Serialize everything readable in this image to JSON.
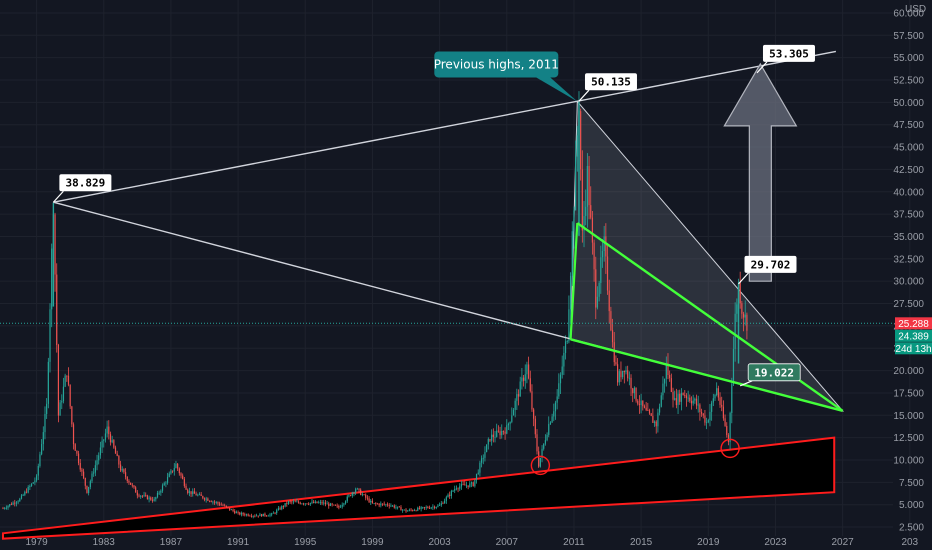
{
  "chart_data": {
    "type": "line",
    "currency_label": "USD",
    "x_range": [
      1977,
      2030
    ],
    "y_range": [
      1.5,
      61
    ],
    "x_ticks": [
      "1979",
      "1983",
      "1987",
      "1991",
      "1995",
      "1999",
      "2003",
      "2007",
      "2011",
      "2015",
      "2019",
      "2023",
      "2027",
      "203"
    ],
    "y_ticks": [
      "60.000",
      "57.500",
      "55.000",
      "52.500",
      "50.000",
      "47.500",
      "45.000",
      "42.500",
      "40.000",
      "37.500",
      "35.000",
      "32.500",
      "30.000",
      "27.500",
      "25.000",
      "22.500",
      "20.000",
      "17.500",
      "15.000",
      "12.500",
      "10.000",
      "7.500",
      "5.000",
      "2.500"
    ],
    "price_series": [
      [
        1977.0,
        4.6
      ],
      [
        1978.0,
        5.6
      ],
      [
        1979.0,
        8.0
      ],
      [
        1979.6,
        16
      ],
      [
        1980.0,
        38.8
      ],
      [
        1980.3,
        15
      ],
      [
        1980.8,
        20
      ],
      [
        1981.2,
        12
      ],
      [
        1982.0,
        6.5
      ],
      [
        1982.6,
        10
      ],
      [
        1983.2,
        13.5
      ],
      [
        1984.0,
        9
      ],
      [
        1985.0,
        6.2
      ],
      [
        1986.0,
        5.5
      ],
      [
        1987.3,
        9.5
      ],
      [
        1988.0,
        6.5
      ],
      [
        1990.0,
        5.0
      ],
      [
        1991.0,
        4.0
      ],
      [
        1992.0,
        3.8
      ],
      [
        1993.0,
        3.9
      ],
      [
        1994.0,
        5.3
      ],
      [
        1995.0,
        5.2
      ],
      [
        1996.0,
        5.2
      ],
      [
        1997.0,
        4.7
      ],
      [
        1998.0,
        6.8
      ],
      [
        1999.0,
        5.1
      ],
      [
        2000.0,
        5.0
      ],
      [
        2001.0,
        4.3
      ],
      [
        2002.0,
        4.6
      ],
      [
        2003.0,
        4.9
      ],
      [
        2004.0,
        7.0
      ],
      [
        2005.0,
        7.3
      ],
      [
        2006.0,
        12.5
      ],
      [
        2007.0,
        13.5
      ],
      [
        2008.2,
        20.5
      ],
      [
        2008.9,
        9.5
      ],
      [
        2009.5,
        14
      ],
      [
        2010.0,
        17
      ],
      [
        2010.6,
        24
      ],
      [
        2011.3,
        50.1
      ],
      [
        2011.5,
        35
      ],
      [
        2011.8,
        42
      ],
      [
        2012.3,
        28
      ],
      [
        2012.8,
        34
      ],
      [
        2013.3,
        23
      ],
      [
        2013.6,
        19
      ],
      [
        2014.0,
        20.5
      ],
      [
        2014.7,
        17
      ],
      [
        2015.2,
        15.5
      ],
      [
        2015.9,
        14
      ],
      [
        2016.5,
        20.5
      ],
      [
        2017.0,
        16.5
      ],
      [
        2017.5,
        17.5
      ],
      [
        2018.2,
        16.5
      ],
      [
        2018.9,
        14.2
      ],
      [
        2019.5,
        18
      ],
      [
        2020.2,
        12
      ],
      [
        2020.6,
        26
      ],
      [
        2020.8,
        29.7
      ],
      [
        2021.0,
        27
      ],
      [
        2021.3,
        25.3
      ]
    ],
    "up_candle_color": "#26a69a",
    "down_candle_color": "#ef5350",
    "current_price": 25.288,
    "axis_badges": [
      {
        "label": "25.288",
        "value": 25.288,
        "color": "#f23645"
      },
      {
        "label": "24.389",
        "value": 24.389,
        "color": "#089981"
      },
      {
        "label": "24d 13h",
        "value": 22.9,
        "color": "#089981"
      }
    ],
    "annotations": {
      "notes": [
        {
          "label": "38.829",
          "x": 1980.0,
          "y": 38.83
        },
        {
          "label": "50.135",
          "x": 2011.3,
          "y": 50.13
        },
        {
          "label": "53.305",
          "x": 2021.9,
          "y": 53.3
        },
        {
          "label": "29.702",
          "x": 2020.8,
          "y": 29.7
        }
      ],
      "green_note": {
        "label": "19.022",
        "x": 2020.9,
        "y": 18.3
      },
      "callout": {
        "label": "Previous highs, 2011",
        "x": 2011.2,
        "y": 50.1
      },
      "white_trend_lines": [
        {
          "from": [
            1980.0,
            38.83
          ],
          "to": [
            2026.6,
            55.7
          ]
        },
        {
          "from": [
            1980.0,
            38.83
          ],
          "to": [
            2027.0,
            15.5
          ]
        }
      ],
      "triangle_2011": [
        [
          2011.2,
          50.1
        ],
        [
          2010.8,
          23.5
        ],
        [
          2027.0,
          15.5
        ]
      ],
      "green_wedge": [
        [
          2011.2,
          36.5
        ],
        [
          2010.8,
          23.5
        ],
        [
          2027.0,
          15.5
        ]
      ],
      "red_channel": [
        [
          1977.0,
          1.8
        ],
        [
          2026.5,
          12.5
        ],
        [
          2026.5,
          6.4
        ],
        [
          1977.0,
          1.2
        ]
      ],
      "red_circles": [
        [
          2009.0,
          9.4
        ],
        [
          2020.3,
          11.3
        ]
      ],
      "target_arrow": {
        "from": [
          2022.1,
          30.0
        ],
        "to": [
          2022.1,
          54.3
        ]
      },
      "colors": {
        "white_line": "#d1d4dc",
        "green_line": "#43ff3a",
        "red_line": "#ff1c1c",
        "callout_bg": "#138186",
        "green_note_bg": "#2f7a5f",
        "arrow_fill": "#6a6f7d"
      }
    }
  }
}
